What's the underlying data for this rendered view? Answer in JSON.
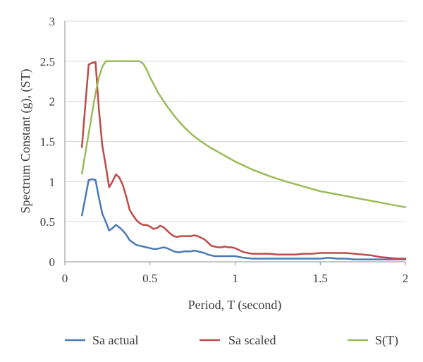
{
  "chart_data": {
    "type": "line",
    "title": "",
    "xlabel": "Period, T (second)",
    "ylabel": "Spectrum Constant (g), (ST)",
    "xlim": [
      0,
      2
    ],
    "ylim": [
      0,
      3
    ],
    "x_ticks": [
      "0",
      "0.5",
      "1",
      "1.5",
      "2"
    ],
    "y_ticks": [
      "0",
      "0.5",
      "1",
      "1.5",
      "2",
      "2.5",
      "3"
    ],
    "grid": "horizontal",
    "legend_position": "bottom",
    "series": [
      {
        "name": "Sa actual",
        "color": "#4a7ab5",
        "x": [
          0.1,
          0.12,
          0.14,
          0.16,
          0.18,
          0.2,
          0.22,
          0.24,
          0.26,
          0.28,
          0.3,
          0.32,
          0.34,
          0.36,
          0.38,
          0.4,
          0.42,
          0.44,
          0.46,
          0.48,
          0.5,
          0.52,
          0.54,
          0.56,
          0.58,
          0.6,
          0.62,
          0.64,
          0.66,
          0.68,
          0.7,
          0.72,
          0.74,
          0.76,
          0.78,
          0.8,
          0.82,
          0.84,
          0.86,
          0.88,
          0.9,
          0.92,
          0.94,
          0.96,
          0.98,
          1.0,
          1.05,
          1.1,
          1.15,
          1.2,
          1.25,
          1.3,
          1.35,
          1.4,
          1.45,
          1.5,
          1.55,
          1.6,
          1.65,
          1.7,
          1.75,
          1.8,
          1.85,
          1.9,
          1.95,
          2.0
        ],
        "values": [
          0.58,
          0.8,
          1.02,
          1.03,
          1.02,
          0.8,
          0.6,
          0.5,
          0.39,
          0.42,
          0.46,
          0.43,
          0.39,
          0.34,
          0.27,
          0.24,
          0.21,
          0.2,
          0.19,
          0.18,
          0.17,
          0.16,
          0.16,
          0.17,
          0.18,
          0.17,
          0.15,
          0.13,
          0.12,
          0.12,
          0.13,
          0.13,
          0.13,
          0.14,
          0.13,
          0.12,
          0.11,
          0.09,
          0.08,
          0.07,
          0.07,
          0.07,
          0.07,
          0.07,
          0.07,
          0.07,
          0.05,
          0.04,
          0.04,
          0.04,
          0.04,
          0.04,
          0.04,
          0.04,
          0.04,
          0.04,
          0.05,
          0.04,
          0.04,
          0.03,
          0.03,
          0.03,
          0.03,
          0.03,
          0.03,
          0.03
        ]
      },
      {
        "name": "Sa scaled",
        "color": "#be4b48",
        "x": [
          0.1,
          0.12,
          0.14,
          0.16,
          0.18,
          0.2,
          0.22,
          0.24,
          0.26,
          0.28,
          0.3,
          0.32,
          0.34,
          0.36,
          0.38,
          0.4,
          0.42,
          0.44,
          0.46,
          0.48,
          0.5,
          0.52,
          0.54,
          0.56,
          0.58,
          0.6,
          0.62,
          0.64,
          0.66,
          0.68,
          0.7,
          0.72,
          0.74,
          0.76,
          0.78,
          0.8,
          0.82,
          0.84,
          0.86,
          0.88,
          0.9,
          0.92,
          0.94,
          0.96,
          0.98,
          1.0,
          1.05,
          1.1,
          1.15,
          1.2,
          1.25,
          1.3,
          1.35,
          1.4,
          1.45,
          1.5,
          1.55,
          1.6,
          1.65,
          1.7,
          1.75,
          1.8,
          1.85,
          1.9,
          1.95,
          2.0
        ],
        "values": [
          1.43,
          1.95,
          2.46,
          2.48,
          2.49,
          1.9,
          1.45,
          1.2,
          0.93,
          1.0,
          1.09,
          1.05,
          0.96,
          0.82,
          0.65,
          0.58,
          0.52,
          0.48,
          0.46,
          0.46,
          0.44,
          0.41,
          0.42,
          0.45,
          0.43,
          0.39,
          0.35,
          0.32,
          0.31,
          0.32,
          0.32,
          0.32,
          0.32,
          0.33,
          0.32,
          0.3,
          0.28,
          0.24,
          0.2,
          0.19,
          0.18,
          0.18,
          0.19,
          0.18,
          0.18,
          0.17,
          0.12,
          0.1,
          0.1,
          0.1,
          0.09,
          0.09,
          0.09,
          0.1,
          0.1,
          0.11,
          0.11,
          0.11,
          0.11,
          0.1,
          0.09,
          0.08,
          0.06,
          0.05,
          0.04,
          0.04
        ]
      },
      {
        "name": "S(T)",
        "color": "#9bbb59",
        "x": [
          0.1,
          0.12,
          0.14,
          0.16,
          0.18,
          0.2,
          0.22,
          0.24,
          0.26,
          0.28,
          0.3,
          0.32,
          0.34,
          0.36,
          0.38,
          0.4,
          0.42,
          0.44,
          0.46,
          0.48,
          0.5,
          0.55,
          0.6,
          0.65,
          0.7,
          0.75,
          0.8,
          0.85,
          0.9,
          0.95,
          1.0,
          1.1,
          1.2,
          1.3,
          1.4,
          1.5,
          1.6,
          1.7,
          1.8,
          1.9,
          2.0
        ],
        "values": [
          1.1,
          1.35,
          1.6,
          1.85,
          2.1,
          2.3,
          2.43,
          2.5,
          2.5,
          2.5,
          2.5,
          2.5,
          2.5,
          2.5,
          2.5,
          2.5,
          2.5,
          2.5,
          2.47,
          2.4,
          2.3,
          2.1,
          1.94,
          1.8,
          1.68,
          1.58,
          1.5,
          1.43,
          1.37,
          1.31,
          1.25,
          1.15,
          1.07,
          1.0,
          0.94,
          0.88,
          0.84,
          0.8,
          0.76,
          0.72,
          0.68
        ]
      }
    ]
  }
}
